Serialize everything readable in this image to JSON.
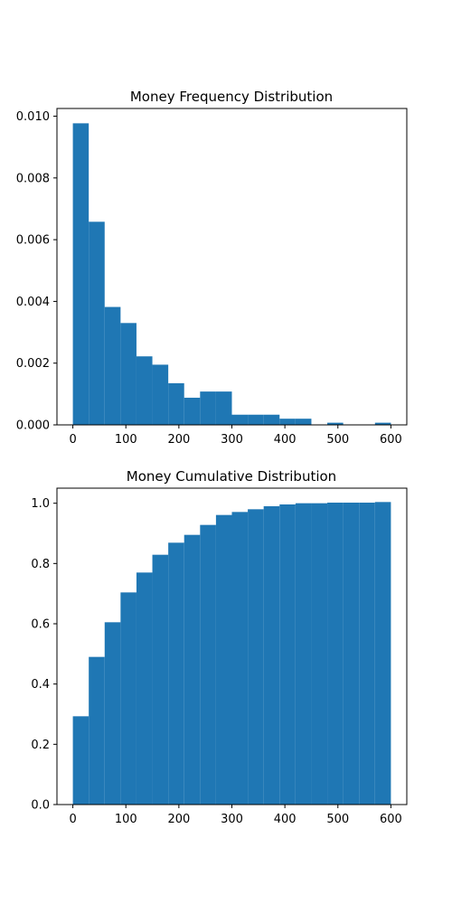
{
  "chart_data": [
    {
      "type": "bar",
      "title": "Money Frequency Distribution",
      "xlabel": "",
      "ylabel": "",
      "color": "#1f77b4",
      "bin_edges": [
        0,
        30,
        60,
        90,
        120,
        150,
        180,
        210,
        240,
        270,
        300,
        330,
        360,
        390,
        420,
        450,
        480,
        510,
        540,
        570,
        600
      ],
      "values": [
        0.00977,
        0.00658,
        0.00382,
        0.0033,
        0.00222,
        0.00195,
        0.00135,
        0.00088,
        0.00108,
        0.00108,
        0.00033,
        0.00033,
        0.00033,
        0.0002,
        0.0002,
        0.0,
        7e-05,
        0.0,
        0.0,
        7e-05
      ],
      "xlim": [
        -30,
        630
      ],
      "ylim": [
        0,
        0.01025
      ],
      "xticks": [
        0,
        100,
        200,
        300,
        400,
        500,
        600
      ],
      "xtick_labels": [
        "0",
        "100",
        "200",
        "300",
        "400",
        "500",
        "600"
      ],
      "yticks": [
        0.0,
        0.002,
        0.004,
        0.006,
        0.008,
        0.01
      ],
      "ytick_labels": [
        "0.000",
        "0.002",
        "0.004",
        "0.006",
        "0.008",
        "0.010"
      ]
    },
    {
      "type": "bar",
      "title": "Money Cumulative Distribution",
      "xlabel": "",
      "ylabel": "",
      "color": "#1f77b4",
      "bin_edges": [
        0,
        30,
        60,
        90,
        120,
        150,
        180,
        210,
        240,
        270,
        300,
        330,
        360,
        390,
        420,
        450,
        480,
        510,
        540,
        570,
        600
      ],
      "values": [
        0.293,
        0.49,
        0.605,
        0.704,
        0.77,
        0.829,
        0.869,
        0.895,
        0.928,
        0.961,
        0.971,
        0.98,
        0.99,
        0.996,
        1.0,
        1.0,
        1.002,
        1.002,
        1.002,
        1.004
      ],
      "xlim": [
        -30,
        630
      ],
      "ylim": [
        0,
        1.05
      ],
      "xticks": [
        0,
        100,
        200,
        300,
        400,
        500,
        600
      ],
      "xtick_labels": [
        "0",
        "100",
        "200",
        "300",
        "400",
        "500",
        "600"
      ],
      "yticks": [
        0.0,
        0.2,
        0.4,
        0.6,
        0.8,
        1.0
      ],
      "ytick_labels": [
        "0.0",
        "0.2",
        "0.4",
        "0.6",
        "0.8",
        "1.0"
      ]
    }
  ]
}
